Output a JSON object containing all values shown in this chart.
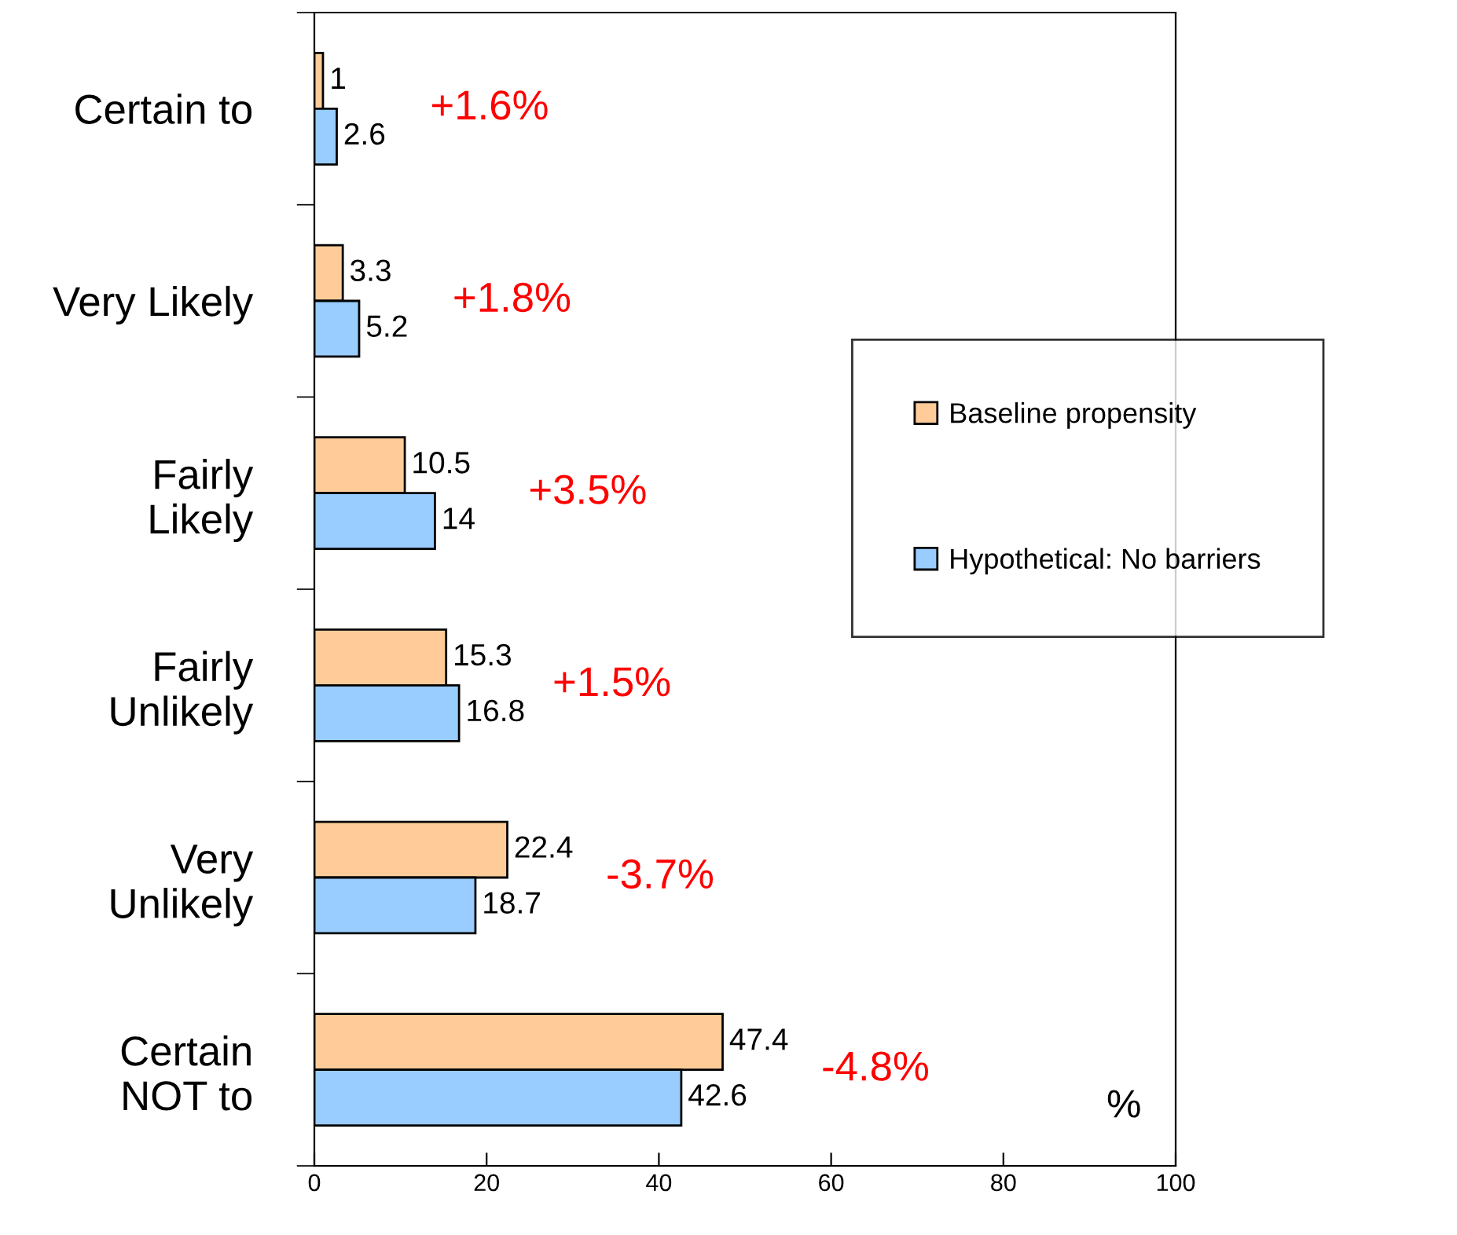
{
  "chart_data": {
    "type": "bar",
    "orientation": "horizontal",
    "xlabel": "%",
    "categories": [
      "Certain to",
      "Very Likely",
      "Fairly\nLikely",
      "Fairly\nUnlikely",
      "Very\nUnlikely",
      "Certain\nNOT to"
    ],
    "series": [
      {
        "name": "Baseline propensity",
        "color": "#ffcc99",
        "values": [
          1,
          3.3,
          10.5,
          15.3,
          22.4,
          47.4
        ]
      },
      {
        "name": "Hypothetical: No barriers",
        "color": "#99ccff",
        "values": [
          2.6,
          5.2,
          14,
          16.8,
          18.7,
          42.6
        ]
      }
    ],
    "xlim": [
      0,
      100
    ],
    "xticks": [
      0,
      20,
      40,
      60,
      80,
      100
    ],
    "data_labels": true,
    "legend": "right",
    "grid": false,
    "annotations": [
      "+1.6%",
      "+1.8%",
      "+3.5%",
      "+1.5%",
      "-3.7%",
      "-4.8%"
    ]
  }
}
